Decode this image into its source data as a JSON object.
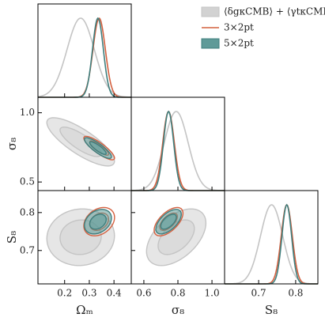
{
  "chart_data": {
    "type": "corner",
    "parameters": [
      {
        "label": "Ωₘ",
        "xlim": [
          0.092,
          0.47
        ],
        "xticks": [
          0.2,
          0.3,
          0.4
        ]
      },
      {
        "label": "σ₈",
        "xlim": [
          0.526,
          1.074
        ],
        "xticks": [
          0.6,
          0.8,
          {
            "value": 1,
            "label": "1.0"
          }
        ],
        "ylim": [
          0.438,
          1.112
        ],
        "yticks": [
          0.5,
          {
            "value": 1,
            "label": "1.0"
          }
        ]
      },
      {
        "label": "S₈",
        "xlim": [
          0.608,
          0.86
        ],
        "xticks": [
          0.7,
          0.8
        ],
        "ylim": [
          0.612,
          0.858
        ],
        "yticks": [
          0.7,
          0.8
        ]
      }
    ],
    "series": [
      {
        "name": "⟨δgκCMB⟩ + ⟨γtκCMB⟩",
        "color": "#c4c4c4",
        "fill": "#d2d2d2",
        "mean": [
          0.265,
          0.79,
          0.735
        ],
        "sd": [
          0.055,
          0.07,
          0.03
        ],
        "corr": [
          -0.8,
          0.05,
          0.5
        ]
      },
      {
        "name": "3×2pt",
        "color": "#d4603f",
        "mean": [
          0.34,
          0.745,
          0.776
        ],
        "sd": [
          0.025,
          0.034,
          0.015
        ],
        "corr": [
          -0.85,
          0.3,
          0.6
        ]
      },
      {
        "name": "5×2pt",
        "color": "#3f7f7e",
        "fill": "#5f9a98",
        "mean": [
          0.335,
          0.745,
          0.776
        ],
        "sd": [
          0.022,
          0.03,
          0.013
        ],
        "corr": [
          -0.85,
          0.3,
          0.6
        ]
      }
    ],
    "legend": "upper right"
  }
}
